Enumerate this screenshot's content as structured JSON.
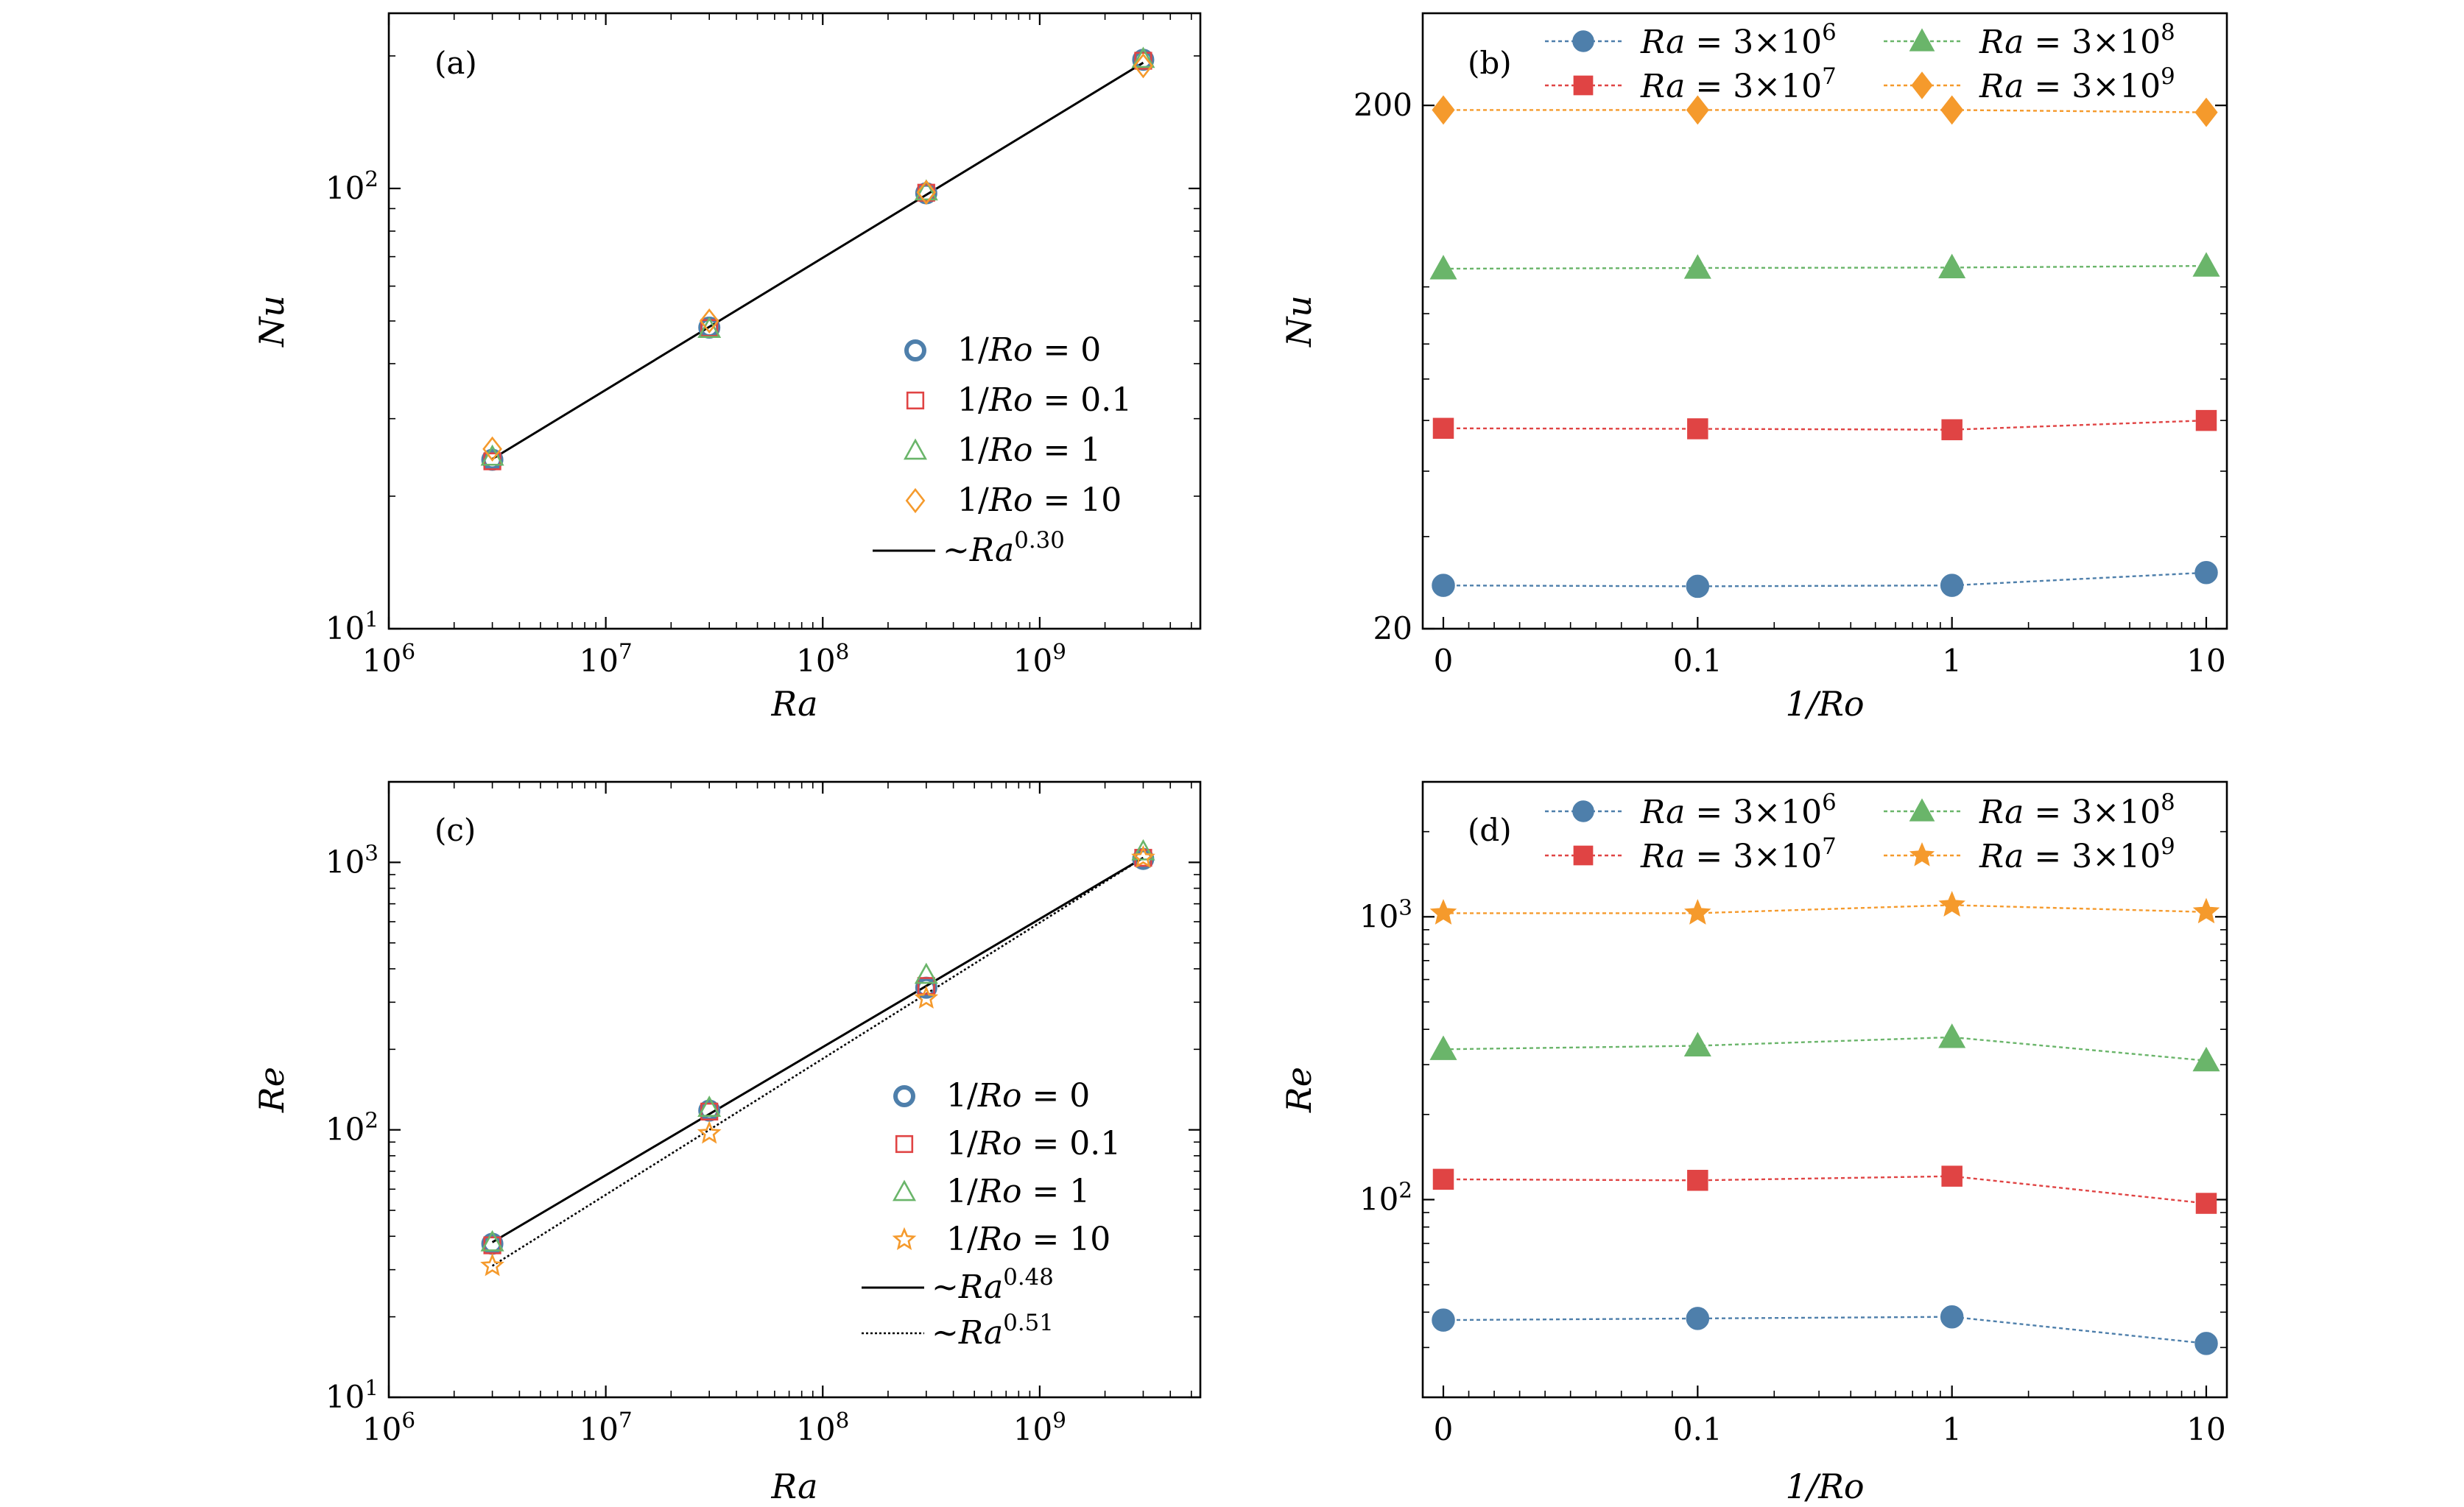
{
  "colors": {
    "blue": "#4e7fab",
    "red": "#e04444",
    "green": "#6ab56a",
    "orange": "#f59a2c"
  },
  "chart_data": [
    {
      "panel": "(a)",
      "type": "scatter",
      "xscale": "log",
      "yscale": "log",
      "xlabel": "Ra",
      "ylabel": "Nu",
      "xlim": [
        1000000,
        5500000000
      ],
      "ylim": [
        10,
        250
      ],
      "xticks": [
        {
          "v": 1000000,
          "label": "10⁶"
        },
        {
          "v": 10000000,
          "label": "10⁷"
        },
        {
          "v": 100000000,
          "label": "10⁸"
        },
        {
          "v": 1000000000,
          "label": "10⁹"
        }
      ],
      "yticks": [
        {
          "v": 10,
          "label": "10¹"
        },
        {
          "v": 100,
          "label": "10²"
        }
      ],
      "legend_position": "lower-right",
      "x": [
        3000000,
        30000000,
        300000000,
        3000000000
      ],
      "series": [
        {
          "name": "1/Ro = 0",
          "marker": "circle-open-thick",
          "color": "blue",
          "values": [
            24.2,
            48.3,
            97.5,
            196
          ]
        },
        {
          "name": "1/Ro = 0.1",
          "marker": "square-open",
          "color": "red",
          "values": [
            24.0,
            48.2,
            97.8,
            195
          ]
        },
        {
          "name": "1/Ro = 1",
          "marker": "triangle-open",
          "color": "green",
          "values": [
            24.6,
            48.0,
            98.5,
            197
          ]
        },
        {
          "name": "1/Ro = 10",
          "marker": "diamond-open",
          "color": "orange",
          "values": [
            25.6,
            50.0,
            98.0,
            190
          ]
        }
      ],
      "fits": [
        {
          "name": "~Ra^0.30",
          "style": "solid",
          "x": [
            3000000,
            3000000000
          ],
          "y": [
            24.3,
            193
          ]
        }
      ]
    },
    {
      "panel": "(b)",
      "type": "line",
      "xscale": "symlog",
      "yscale": "log",
      "xlabel": "1/Ro",
      "ylabel": "Nu",
      "ylim": [
        20,
        300
      ],
      "categories": [
        "0",
        "0.1",
        "1",
        "10"
      ],
      "yticks": [
        {
          "v": 20,
          "label": "20"
        },
        {
          "v": 200,
          "label": "200"
        }
      ],
      "legend_position": "top",
      "series": [
        {
          "name": "Ra = 3×10⁶",
          "marker": "circle",
          "color": "blue",
          "values": [
            24.2,
            24.1,
            24.2,
            25.6
          ]
        },
        {
          "name": "Ra = 3×10⁷",
          "marker": "square",
          "color": "red",
          "values": [
            48.3,
            48.2,
            48.0,
            50.0
          ]
        },
        {
          "name": "Ra = 3×10⁸",
          "marker": "triangle",
          "color": "green",
          "values": [
            97.5,
            97.8,
            98.0,
            98.7
          ]
        },
        {
          "name": "Ra = 3×10⁹",
          "marker": "diamond",
          "color": "orange",
          "values": [
            196,
            196,
            196,
            194
          ]
        }
      ]
    },
    {
      "panel": "(c)",
      "type": "scatter",
      "xscale": "log",
      "yscale": "log",
      "xlabel": "Ra",
      "ylabel": "Re",
      "xlim": [
        1000000,
        5500000000
      ],
      "ylim": [
        10,
        2000
      ],
      "xticks": [
        {
          "v": 1000000,
          "label": "10⁶"
        },
        {
          "v": 10000000,
          "label": "10⁷"
        },
        {
          "v": 100000000,
          "label": "10⁸"
        },
        {
          "v": 1000000000,
          "label": "10⁹"
        }
      ],
      "yticks": [
        {
          "v": 10,
          "label": "10¹"
        },
        {
          "v": 100,
          "label": "10²"
        },
        {
          "v": 1000,
          "label": "10³"
        }
      ],
      "legend_position": "lower-right",
      "x": [
        3000000,
        30000000,
        300000000,
        3000000000
      ],
      "series": [
        {
          "name": "1/Ro = 0",
          "marker": "circle-open-thick",
          "color": "blue",
          "values": [
            37.5,
            118,
            340,
            1030
          ]
        },
        {
          "name": "1/Ro = 0.1",
          "marker": "square-open",
          "color": "red",
          "values": [
            37.0,
            117,
            345,
            1040
          ]
        },
        {
          "name": "1/Ro = 1",
          "marker": "triangle-open",
          "color": "green",
          "values": [
            38.0,
            121,
            380,
            1100
          ]
        },
        {
          "name": "1/Ro = 10",
          "marker": "star-open",
          "color": "orange",
          "values": [
            31.0,
            97,
            310,
            1040
          ]
        }
      ],
      "fits": [
        {
          "name": "~Ra^0.48",
          "style": "solid",
          "x": [
            3000000,
            3000000000
          ],
          "y": [
            38.0,
            1040
          ]
        },
        {
          "name": "~Ra^0.51",
          "style": "dotted",
          "x": [
            3000000,
            3000000000
          ],
          "y": [
            31.0,
            1040
          ]
        }
      ]
    },
    {
      "panel": "(d)",
      "type": "line",
      "xscale": "symlog",
      "yscale": "log",
      "xlabel": "1/Ro",
      "ylabel": "Re",
      "ylim": [
        20,
        3000
      ],
      "categories": [
        "0",
        "0.1",
        "1",
        "10"
      ],
      "yticks": [
        {
          "v": 100,
          "label": "10²"
        },
        {
          "v": 1000,
          "label": "10³"
        }
      ],
      "legend_position": "top",
      "series": [
        {
          "name": "Ra = 3×10⁶",
          "marker": "circle",
          "color": "blue",
          "values": [
            37.5,
            38.0,
            38.5,
            31.0
          ]
        },
        {
          "name": "Ra = 3×10⁷",
          "marker": "square",
          "color": "red",
          "values": [
            118,
            117,
            121,
            97
          ]
        },
        {
          "name": "Ra = 3×10⁸",
          "marker": "triangle",
          "color": "green",
          "values": [
            340,
            350,
            375,
            310
          ]
        },
        {
          "name": "Ra = 3×10⁹",
          "marker": "star",
          "color": "orange",
          "values": [
            1030,
            1030,
            1100,
            1040
          ]
        }
      ]
    }
  ]
}
